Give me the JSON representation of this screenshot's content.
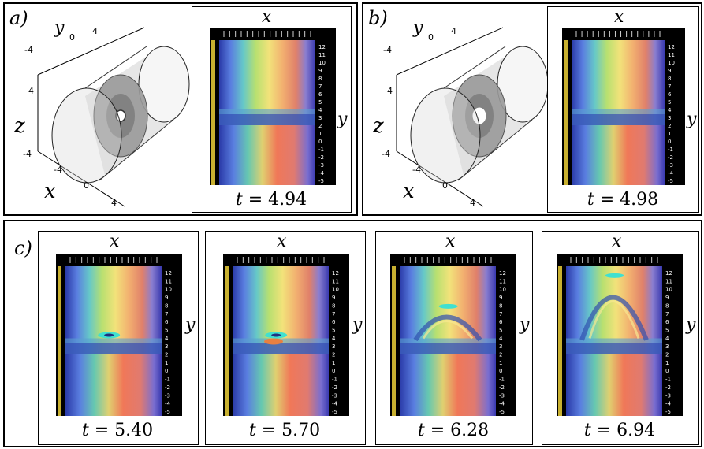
{
  "panels": {
    "a": {
      "label": "a)",
      "iso_axes": {
        "y": "y",
        "z": "z",
        "x": "x"
      },
      "iso_ticks": {
        "y": [
          "-4",
          "0",
          "4"
        ],
        "z": [
          "-4",
          "4"
        ],
        "x": [
          "-4",
          "0",
          "4"
        ]
      },
      "frame_axes": {
        "x": "x",
        "y": "y"
      },
      "time": "4.94"
    },
    "b": {
      "label": "b)",
      "iso_axes": {
        "y": "y",
        "z": "z",
        "x": "x"
      },
      "iso_ticks": {
        "y": [
          "-4",
          "0",
          "4"
        ],
        "z": [
          "-4",
          "4"
        ],
        "x": [
          "-4",
          "0",
          "4"
        ]
      },
      "frame_axes": {
        "x": "x",
        "y": "y"
      },
      "time": "4.98"
    },
    "c": {
      "label": "c)",
      "frames": [
        {
          "x_axis": "x",
          "y_axis": "y",
          "time": "5.40"
        },
        {
          "x_axis": "x",
          "y_axis": "y",
          "time": "5.70"
        },
        {
          "x_axis": "x",
          "y_axis": "y",
          "time": "6.28"
        },
        {
          "x_axis": "x",
          "y_axis": "y",
          "time": "6.94"
        }
      ]
    }
  },
  "time_prefix": "t",
  "time_equals": " = ",
  "y_ticks": [
    "12",
    "11",
    "10",
    "9",
    "8",
    "7",
    "6",
    "5",
    "4",
    "3",
    "2",
    "1",
    "0",
    "-1",
    "-2",
    "-3",
    "-4",
    "-5"
  ],
  "colors": {
    "frame": "#000000",
    "warm": "#e8745c",
    "cool": "#5a78d8",
    "accent": "#f0e060"
  }
}
